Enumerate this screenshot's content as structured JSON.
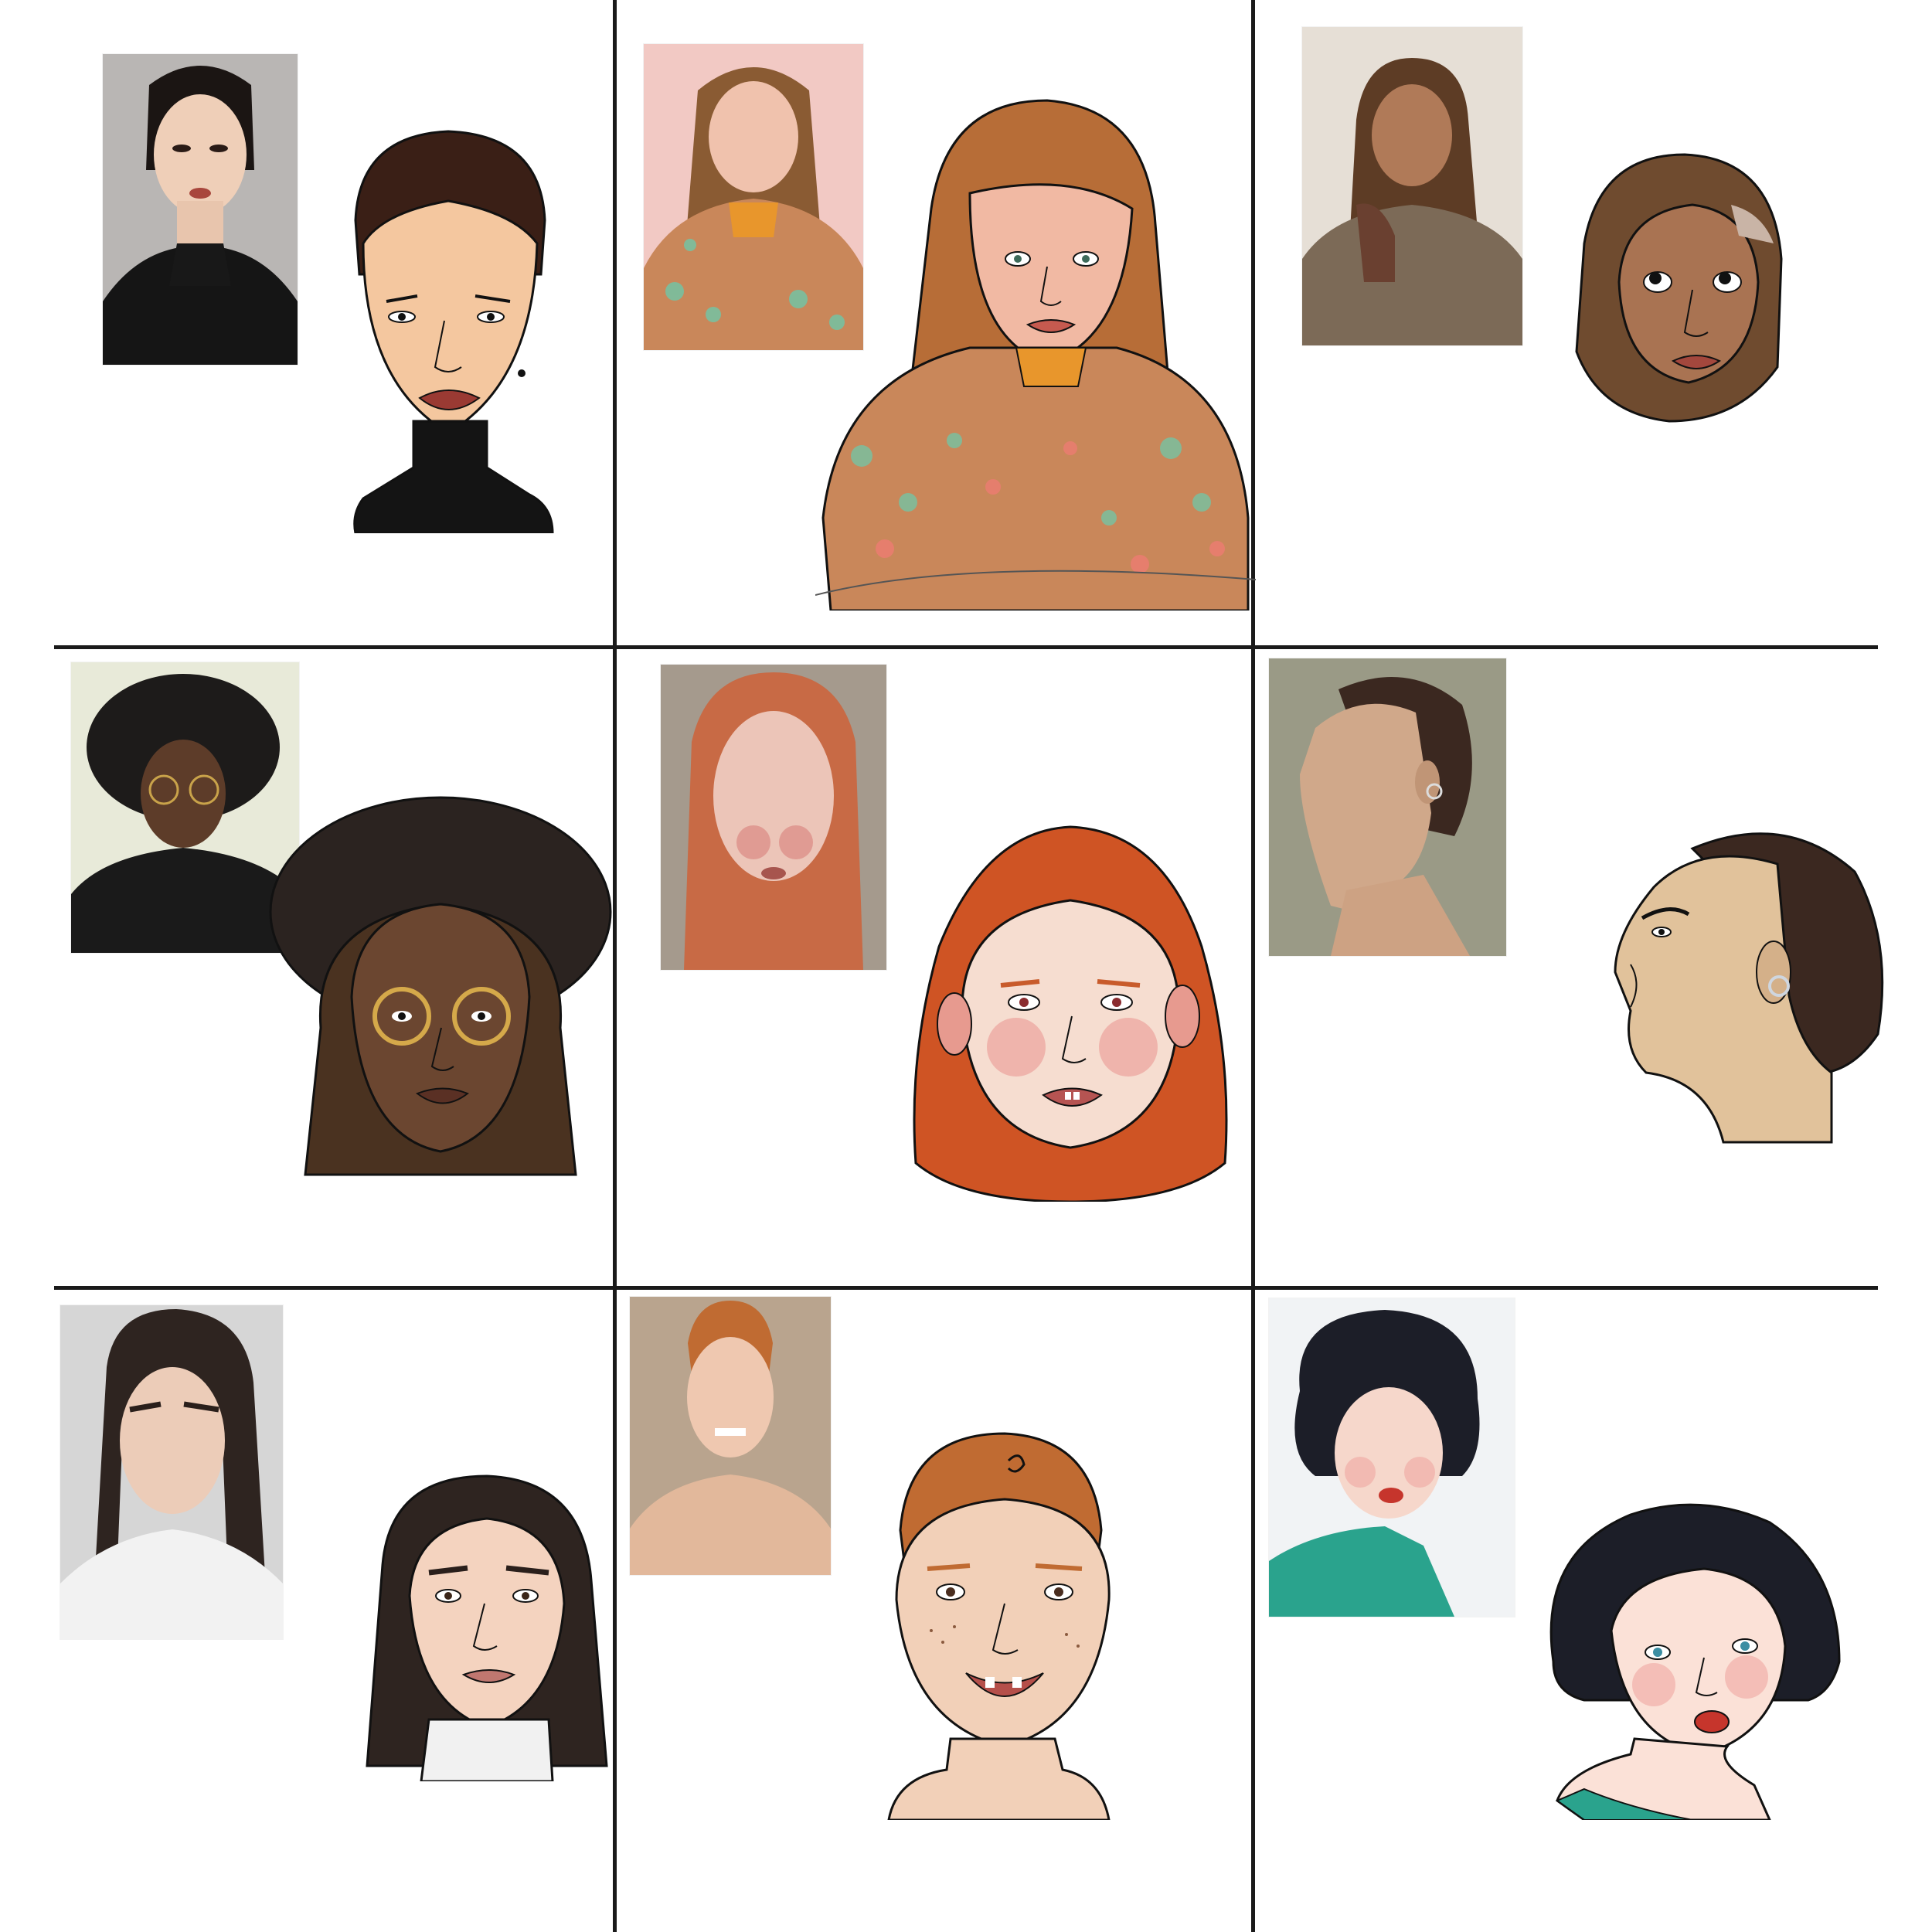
{
  "panels": [
    {
      "id": "r1c1",
      "photo_bg": "#b9b6b4",
      "skin": "#f4c79f",
      "hair": "#3a1f16",
      "garment": "#141414"
    },
    {
      "id": "r1c2",
      "photo_bg": "#f2c9c4",
      "skin": "#f1b9a3",
      "hair": "#b76d37",
      "garment": "#c9875a"
    },
    {
      "id": "r1c3",
      "photo_bg": "#e6dfd6",
      "skin": "#a97352",
      "hair": "#5d3c25",
      "garment": "#6f4b2f"
    },
    {
      "id": "r2c1",
      "photo_bg": "#e8ead9",
      "skin": "#6b4630",
      "hair": "#2b2320",
      "garment": "#1b1b1b"
    },
    {
      "id": "r2c2",
      "photo_bg": "#a59a8d",
      "skin": "#f6ddd0",
      "hair": "#cf5424",
      "garment": "#f3d6cf"
    },
    {
      "id": "r2c3",
      "photo_bg": "#9a9a86",
      "skin": "#e1c29b",
      "hair": "#3b2820",
      "garment": "#e1c29b"
    },
    {
      "id": "r3c1",
      "photo_bg": "#d6d6d6",
      "skin": "#f4d3bf",
      "hair": "#2e2420",
      "garment": "#f1f1f1"
    },
    {
      "id": "r3c2",
      "photo_bg": "#b9a48e",
      "skin": "#f2d0b8",
      "hair": "#c06b32",
      "garment": "#f2d0b8"
    },
    {
      "id": "r3c3",
      "photo_bg": "#f1f3f5",
      "skin": "#fbe1d7",
      "hair": "#1c1e28",
      "garment": "#2aa38d"
    }
  ]
}
